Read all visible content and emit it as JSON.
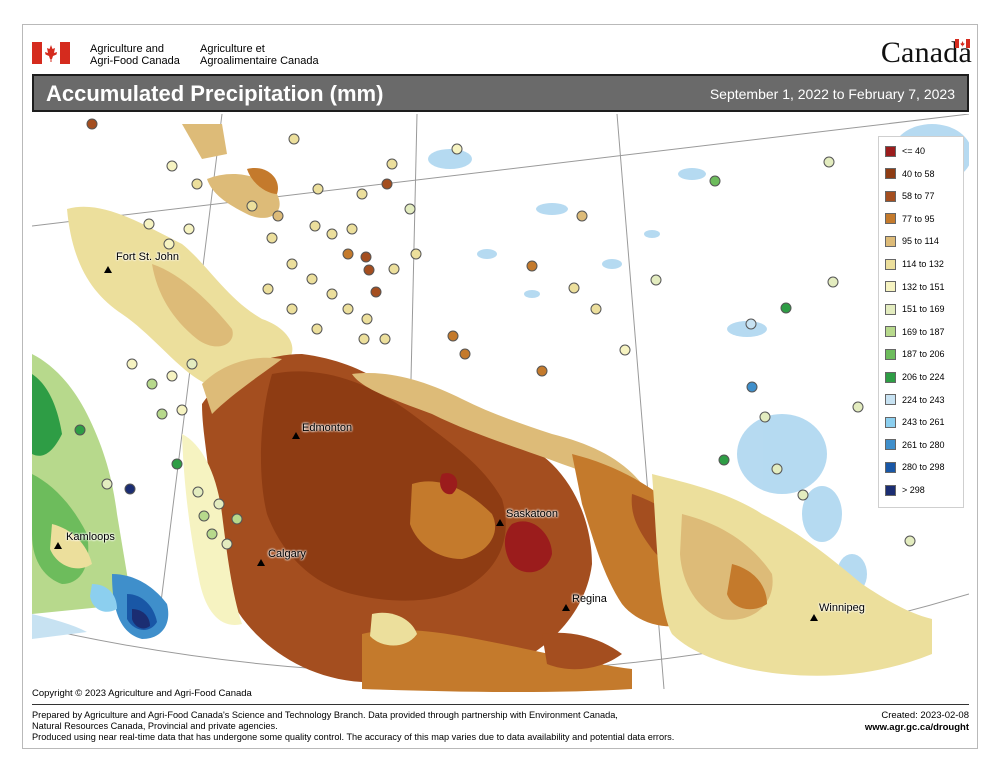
{
  "header": {
    "dept_en_line1": "Agriculture and",
    "dept_en_line2": "Agri-Food Canada",
    "dept_fr_line1": "Agriculture et",
    "dept_fr_line2": "Agroalimentaire Canada",
    "wordmark": "Canada"
  },
  "title": "Accumulated Precipitation (mm)",
  "date_range": "September 1, 2022 to February 7, 2023",
  "cities": [
    {
      "name": "Fort St. John"
    },
    {
      "name": "Edmonton"
    },
    {
      "name": "Saskatoon"
    },
    {
      "name": "Kamloops"
    },
    {
      "name": "Calgary"
    },
    {
      "name": "Regina"
    },
    {
      "name": "Winnipeg"
    }
  ],
  "legend": [
    {
      "label": "<= 40",
      "color": "#9b1c1c"
    },
    {
      "label": "40 to 58",
      "color": "#8e3c13"
    },
    {
      "label": "58 to 77",
      "color": "#a44e1f"
    },
    {
      "label": "77 to 95",
      "color": "#c47a2c"
    },
    {
      "label": "95 to 114",
      "color": "#ddbb78"
    },
    {
      "label": "114 to 132",
      "color": "#ecdf9c"
    },
    {
      "label": "132 to 151",
      "color": "#f6f3c1"
    },
    {
      "label": "151 to 169",
      "color": "#e3ecbf"
    },
    {
      "label": "169 to 187",
      "color": "#b7d98c"
    },
    {
      "label": "187 to 206",
      "color": "#6dbc5c"
    },
    {
      "label": "206 to 224",
      "color": "#2e9d45"
    },
    {
      "label": "224 to 243",
      "color": "#c7e2f2"
    },
    {
      "label": "243 to 261",
      "color": "#8ccfef"
    },
    {
      "label": "261 to 280",
      "color": "#3f8fcb"
    },
    {
      "label": "280 to 298",
      "color": "#1957a6"
    },
    {
      "label": "> 298",
      "color": "#1b2d72"
    }
  ],
  "footer": {
    "copyright": "Copyright © 2023 Agriculture and Agri-Food Canada",
    "note_line1": "Prepared by Agriculture and Agri-Food Canada's Science and Technology Branch. Data provided through partnership with Environment Canada,",
    "note_line2": "Natural Resources Canada, Provincial and private agencies.",
    "note_line3": "Produced using near real-time data that has undergone some quality control. The accuracy of this map varies due to data availability and potential data errors.",
    "created": "Created: 2023-02-08",
    "url": "www.agr.gc.ca/drought"
  }
}
